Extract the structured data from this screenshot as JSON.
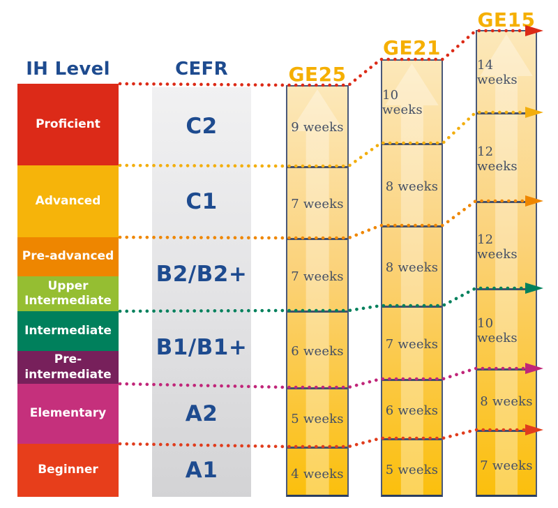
{
  "headers": {
    "ih": "IH Level",
    "cefr": "CEFR"
  },
  "ih_levels": [
    {
      "label": "Proficient",
      "color": "#DC2A18"
    },
    {
      "label": "Advanced",
      "color": "#F6B40A"
    },
    {
      "label": "Pre-advanced",
      "color": "#EE8600"
    },
    {
      "label": "Upper Intermediate",
      "color": "#95BE32"
    },
    {
      "label": "Intermediate",
      "color": "#00805C"
    },
    {
      "label": "Pre-intermediate",
      "color": "#77205B"
    },
    {
      "label": "Elementary",
      "color": "#C5307C"
    },
    {
      "label": "Beginner",
      "color": "#E73E1B"
    }
  ],
  "cefr_levels": [
    {
      "label": "C2"
    },
    {
      "label": "C1"
    },
    {
      "label": "B2/B2+"
    },
    {
      "label": "B1/B1+"
    },
    {
      "label": "A2"
    },
    {
      "label": "A1"
    }
  ],
  "courses": [
    {
      "name": "GE25",
      "segments": [
        "9 weeks",
        "7 weeks",
        "7 weeks",
        "6 weeks",
        "5 weeks",
        "4 weeks"
      ]
    },
    {
      "name": "GE21",
      "segments": [
        "10 weeks",
        "8 weeks",
        "8 weeks",
        "7 weeks",
        "6 weeks",
        "5 weeks"
      ]
    },
    {
      "name": "GE15",
      "segments": [
        "14 weeks",
        "12 weeks",
        "12 weeks",
        "10 weeks",
        "8 weeks",
        "7 weeks"
      ]
    }
  ],
  "connector_colors": [
    "#DC2A16",
    "#F2AE0E",
    "#EE8600",
    "#00805C",
    "#C02579",
    "#E03C1C"
  ],
  "colors": {
    "header_text": "#1E4B8F",
    "course_title": "#F5AF00",
    "week_text": "#434E64",
    "column_border": "#4A5878",
    "column_fill_bottom": "#FBBF0D",
    "column_fill_top": "#FCE8BA",
    "cefr_fill_top": "#F1F1F2",
    "cefr_fill_bottom": "#D3D3D5"
  },
  "chart_data": {
    "type": "table",
    "columns": [
      "IH Level",
      "CEFR",
      "GE25",
      "GE21",
      "GE15"
    ],
    "rows": [
      {
        "ih_level": "Proficient",
        "cefr": "C2",
        "ge25_weeks": 9,
        "ge21_weeks": 10,
        "ge15_weeks": 14
      },
      {
        "ih_level": "Advanced",
        "cefr": "C1",
        "ge25_weeks": 7,
        "ge21_weeks": 8,
        "ge15_weeks": 12
      },
      {
        "ih_level": "Pre-advanced / Upper Intermediate",
        "cefr": "B2/B2+",
        "ge25_weeks": 7,
        "ge21_weeks": 8,
        "ge15_weeks": 12
      },
      {
        "ih_level": "Intermediate / Pre-intermediate",
        "cefr": "B1/B1+",
        "ge25_weeks": 6,
        "ge21_weeks": 7,
        "ge15_weeks": 10
      },
      {
        "ih_level": "Elementary",
        "cefr": "A2",
        "ge25_weeks": 5,
        "ge21_weeks": 6,
        "ge15_weeks": 8
      },
      {
        "ih_level": "Beginner",
        "cefr": "A1",
        "ge25_weeks": 4,
        "ge21_weeks": 5,
        "ge15_weeks": 7
      }
    ],
    "legend_position": "none",
    "grid": false,
    "notes": "Dotted connector lines link each IH level boundary across CEFR bar and the three course columns, ending in an arrowhead at the GE15 column; connector colors match the IH level band above each line."
  }
}
